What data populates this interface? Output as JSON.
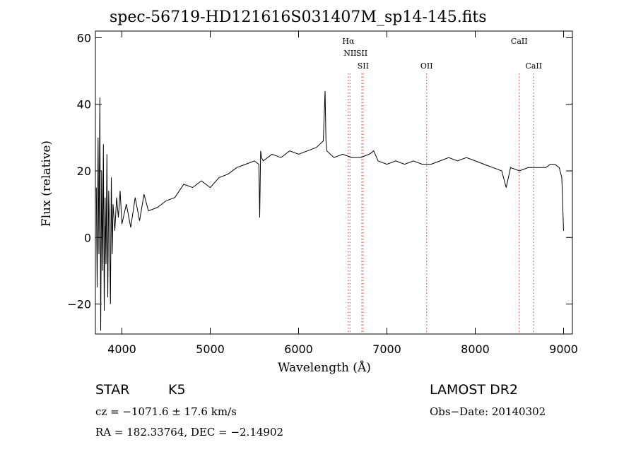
{
  "chart_data": {
    "type": "line",
    "title": "spec-56719-HD121616S031407M_sp14-145.fits",
    "xlabel": "Wavelength (Å)",
    "ylabel": "Flux (relative)",
    "xlim": [
      3700,
      9100
    ],
    "ylim": [
      -29,
      62
    ],
    "xticks": [
      4000,
      5000,
      6000,
      7000,
      8000,
      9000
    ],
    "xtick_labels": [
      "4000",
      "5000",
      "6000",
      "7000",
      "8000",
      "9000"
    ],
    "yticks": [
      -20,
      0,
      20,
      40,
      60
    ],
    "ytick_labels": [
      "−20",
      "0",
      "20",
      "40",
      "60"
    ],
    "grid": false,
    "line_color": "#000000",
    "marker_color": "#e05050",
    "emission_lines": [
      {
        "label": "Hα",
        "wavelength": 6563,
        "tier": 1
      },
      {
        "label": "NII",
        "wavelength": 6583,
        "tier": 2
      },
      {
        "label": "SII",
        "wavelength": 6716,
        "tier": 2
      },
      {
        "label": "SII",
        "wavelength": 6731,
        "tier": 3
      },
      {
        "label": "OII",
        "wavelength": 7450,
        "tier": 3
      },
      {
        "label": "CaII",
        "wavelength": 8498,
        "tier": 1
      },
      {
        "label": "CaII",
        "wavelength": 8662,
        "tier": 3
      }
    ],
    "series": [
      {
        "x": [
          3710,
          3720,
          3730,
          3740,
          3750,
          3760,
          3770,
          3780,
          3790,
          3800,
          3810,
          3820,
          3830,
          3840,
          3850,
          3860,
          3870,
          3880,
          3890,
          3900,
          3920,
          3940,
          3960,
          3980,
          4000,
          4050,
          4100,
          4150,
          4200,
          4250,
          4300,
          4400,
          4500,
          4600,
          4700,
          4800,
          4900,
          5000,
          5100,
          5200,
          5300,
          5400,
          5500,
          5550,
          5560,
          5570,
          5580,
          5600,
          5700,
          5800,
          5900,
          6000,
          6100,
          6200,
          6280,
          6300,
          6310,
          6320,
          6400,
          6500,
          6600,
          6700,
          6800,
          6850,
          6900,
          7000,
          7100,
          7200,
          7300,
          7400,
          7500,
          7600,
          7700,
          7800,
          7900,
          8000,
          8100,
          8200,
          8300,
          8350,
          8400,
          8500,
          8600,
          8700,
          8800,
          8850,
          8900,
          8950,
          8980,
          9000
        ],
        "y": [
          15,
          -15,
          30,
          -5,
          42,
          -28,
          20,
          -10,
          28,
          -22,
          12,
          -8,
          25,
          -18,
          14,
          3,
          -20,
          18,
          -5,
          10,
          2,
          12,
          6,
          14,
          4,
          10,
          3,
          12,
          5,
          13,
          8,
          9,
          11,
          12,
          16,
          15,
          17,
          15,
          18,
          19,
          21,
          22,
          23,
          22,
          6,
          26,
          24,
          23,
          25,
          24,
          26,
          25,
          26,
          27,
          29,
          44,
          29,
          26,
          24,
          25,
          24,
          24,
          25,
          26,
          23,
          22,
          23,
          22,
          23,
          22,
          22,
          23,
          24,
          23,
          24,
          23,
          22,
          21,
          20,
          15,
          21,
          20,
          21,
          21,
          21,
          22,
          22,
          21,
          18,
          2
        ]
      }
    ]
  },
  "info": {
    "object_type": "STAR",
    "subclass": "K5",
    "survey": "LAMOST DR2",
    "cz_line": "cz = −1071.6 ± 17.6 km/s",
    "obs_date_line": "Obs−Date: 20140302",
    "coords_line": "RA = 182.33764, DEC =  −2.14902"
  }
}
